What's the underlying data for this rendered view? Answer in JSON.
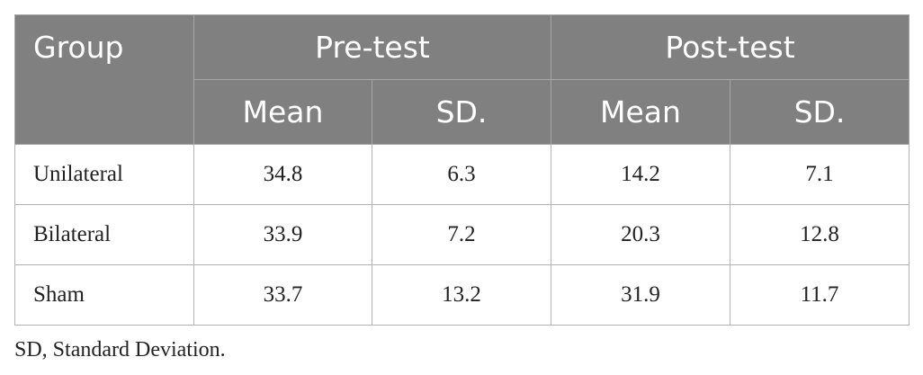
{
  "table": {
    "header": {
      "group": "Group",
      "spans": [
        "Pre-test",
        "Post-test"
      ],
      "sub": [
        "Mean",
        "SD.",
        "Mean",
        "SD."
      ]
    },
    "rows": [
      [
        "Unilateral",
        34.8,
        6.3,
        14.2,
        7.1
      ],
      [
        "Bilateral",
        33.9,
        7.2,
        20.3,
        12.8
      ],
      [
        "Sham",
        33.7,
        13.2,
        31.9,
        11.7
      ]
    ]
  },
  "footnote": "SD, Standard Deviation."
}
